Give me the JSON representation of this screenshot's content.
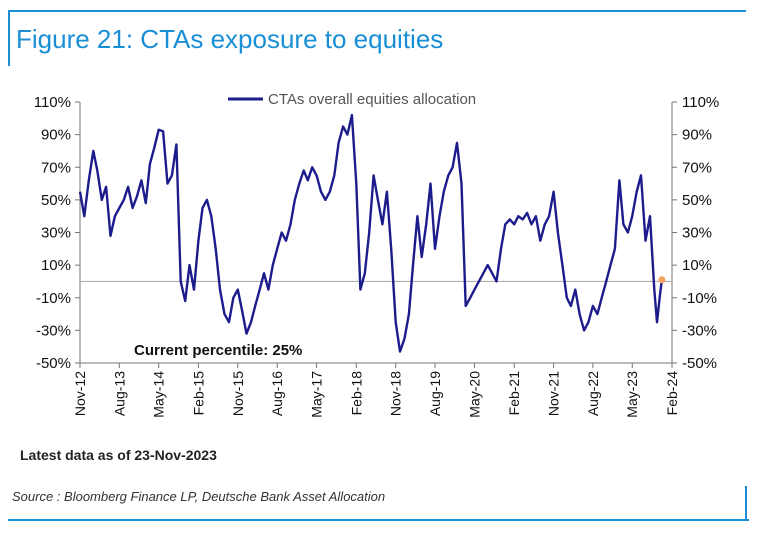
{
  "figure_title": "Figure 21: CTAs exposure to equities",
  "latest_note": "Latest data as of 23-Nov-2023",
  "source": "Source : Bloomberg Finance LP, Deutsche Bank Asset Allocation",
  "colors": {
    "accent": "#1a8fd6",
    "series": "#1c1c8c",
    "marker": "#f4a460",
    "zero_line": "#b0b0b0"
  },
  "chart_data": {
    "type": "line",
    "title": "",
    "xlabel": "",
    "ylabel": "",
    "ylim": [
      -50,
      110
    ],
    "yticks": [
      110,
      90,
      70,
      50,
      30,
      10,
      -10,
      -30,
      -50
    ],
    "ytick_labels": [
      "110%",
      "90%",
      "70%",
      "50%",
      "30%",
      "10%",
      "-10%",
      "-30%",
      "-50%"
    ],
    "xlim": [
      "2012-11-01",
      "2024-02-01"
    ],
    "xtick_labels": [
      "Nov-12",
      "Aug-13",
      "May-14",
      "Feb-15",
      "Nov-15",
      "Aug-16",
      "May-17",
      "Feb-18",
      "Nov-18",
      "Aug-19",
      "May-20",
      "Feb-21",
      "Nov-21",
      "Aug-22",
      "May-23",
      "Feb-24"
    ],
    "xtick_dates": [
      "2012-11-01",
      "2013-08-01",
      "2014-05-01",
      "2015-02-01",
      "2015-11-01",
      "2016-08-01",
      "2017-05-01",
      "2018-02-01",
      "2018-11-01",
      "2019-08-01",
      "2020-05-01",
      "2021-02-01",
      "2021-11-01",
      "2022-08-01",
      "2023-05-01",
      "2024-02-01"
    ],
    "legend": "top-center",
    "annotation": "Current percentile: 25%",
    "highlight_point": {
      "x": "2023-11-23",
      "y": 1
    },
    "series": [
      {
        "name": "CTAs overall equities allocation",
        "points": [
          [
            "2012-11-01",
            55
          ],
          [
            "2012-12-01",
            40
          ],
          [
            "2013-01-01",
            62
          ],
          [
            "2013-02-01",
            80
          ],
          [
            "2013-03-01",
            68
          ],
          [
            "2013-04-01",
            50
          ],
          [
            "2013-05-01",
            58
          ],
          [
            "2013-06-01",
            28
          ],
          [
            "2013-07-01",
            40
          ],
          [
            "2013-08-01",
            45
          ],
          [
            "2013-09-01",
            50
          ],
          [
            "2013-10-01",
            58
          ],
          [
            "2013-11-01",
            45
          ],
          [
            "2013-12-01",
            52
          ],
          [
            "2014-01-01",
            62
          ],
          [
            "2014-02-01",
            48
          ],
          [
            "2014-03-01",
            72
          ],
          [
            "2014-04-01",
            82
          ],
          [
            "2014-05-01",
            93
          ],
          [
            "2014-06-01",
            92
          ],
          [
            "2014-07-01",
            60
          ],
          [
            "2014-08-01",
            65
          ],
          [
            "2014-09-01",
            84
          ],
          [
            "2014-10-01",
            0
          ],
          [
            "2014-11-01",
            -12
          ],
          [
            "2014-12-01",
            10
          ],
          [
            "2015-01-01",
            -5
          ],
          [
            "2015-02-01",
            25
          ],
          [
            "2015-03-01",
            45
          ],
          [
            "2015-04-01",
            50
          ],
          [
            "2015-05-01",
            40
          ],
          [
            "2015-06-01",
            20
          ],
          [
            "2015-07-01",
            -5
          ],
          [
            "2015-08-01",
            -20
          ],
          [
            "2015-09-01",
            -25
          ],
          [
            "2015-10-01",
            -10
          ],
          [
            "2015-11-01",
            -5
          ],
          [
            "2015-12-01",
            -18
          ],
          [
            "2016-01-01",
            -32
          ],
          [
            "2016-02-01",
            -25
          ],
          [
            "2016-03-01",
            -15
          ],
          [
            "2016-04-01",
            -5
          ],
          [
            "2016-05-01",
            5
          ],
          [
            "2016-06-01",
            -5
          ],
          [
            "2016-07-01",
            10
          ],
          [
            "2016-08-01",
            20
          ],
          [
            "2016-09-01",
            30
          ],
          [
            "2016-10-01",
            25
          ],
          [
            "2016-11-01",
            35
          ],
          [
            "2016-12-01",
            50
          ],
          [
            "2017-01-01",
            60
          ],
          [
            "2017-02-01",
            68
          ],
          [
            "2017-03-01",
            62
          ],
          [
            "2017-04-01",
            70
          ],
          [
            "2017-05-01",
            65
          ],
          [
            "2017-06-01",
            55
          ],
          [
            "2017-07-01",
            50
          ],
          [
            "2017-08-01",
            55
          ],
          [
            "2017-09-01",
            65
          ],
          [
            "2017-10-01",
            85
          ],
          [
            "2017-11-01",
            95
          ],
          [
            "2017-12-01",
            90
          ],
          [
            "2018-01-01",
            102
          ],
          [
            "2018-02-01",
            60
          ],
          [
            "2018-03-01",
            -5
          ],
          [
            "2018-04-01",
            5
          ],
          [
            "2018-05-01",
            30
          ],
          [
            "2018-06-01",
            65
          ],
          [
            "2018-07-01",
            50
          ],
          [
            "2018-08-01",
            35
          ],
          [
            "2018-09-01",
            55
          ],
          [
            "2018-10-01",
            20
          ],
          [
            "2018-11-01",
            -25
          ],
          [
            "2018-12-01",
            -43
          ],
          [
            "2019-01-01",
            -35
          ],
          [
            "2019-02-01",
            -20
          ],
          [
            "2019-03-01",
            10
          ],
          [
            "2019-04-01",
            40
          ],
          [
            "2019-05-01",
            15
          ],
          [
            "2019-06-01",
            35
          ],
          [
            "2019-07-01",
            60
          ],
          [
            "2019-08-01",
            20
          ],
          [
            "2019-09-01",
            40
          ],
          [
            "2019-10-01",
            55
          ],
          [
            "2019-11-01",
            65
          ],
          [
            "2019-12-01",
            70
          ],
          [
            "2020-01-01",
            85
          ],
          [
            "2020-02-01",
            60
          ],
          [
            "2020-03-01",
            -15
          ],
          [
            "2020-04-01",
            -10
          ],
          [
            "2020-05-01",
            -5
          ],
          [
            "2020-06-01",
            0
          ],
          [
            "2020-07-01",
            5
          ],
          [
            "2020-08-01",
            10
          ],
          [
            "2020-09-01",
            5
          ],
          [
            "2020-10-01",
            0
          ],
          [
            "2020-11-01",
            20
          ],
          [
            "2020-12-01",
            35
          ],
          [
            "2021-01-01",
            38
          ],
          [
            "2021-02-01",
            35
          ],
          [
            "2021-03-01",
            40
          ],
          [
            "2021-04-01",
            38
          ],
          [
            "2021-05-01",
            42
          ],
          [
            "2021-06-01",
            35
          ],
          [
            "2021-07-01",
            40
          ],
          [
            "2021-08-01",
            25
          ],
          [
            "2021-09-01",
            35
          ],
          [
            "2021-10-01",
            40
          ],
          [
            "2021-11-01",
            55
          ],
          [
            "2021-12-01",
            30
          ],
          [
            "2022-01-01",
            10
          ],
          [
            "2022-02-01",
            -10
          ],
          [
            "2022-03-01",
            -15
          ],
          [
            "2022-04-01",
            -5
          ],
          [
            "2022-05-01",
            -20
          ],
          [
            "2022-06-01",
            -30
          ],
          [
            "2022-07-01",
            -25
          ],
          [
            "2022-08-01",
            -15
          ],
          [
            "2022-09-01",
            -20
          ],
          [
            "2022-10-01",
            -10
          ],
          [
            "2022-11-01",
            0
          ],
          [
            "2022-12-01",
            10
          ],
          [
            "2023-01-01",
            20
          ],
          [
            "2023-02-01",
            62
          ],
          [
            "2023-03-01",
            35
          ],
          [
            "2023-04-01",
            30
          ],
          [
            "2023-05-01",
            40
          ],
          [
            "2023-06-01",
            55
          ],
          [
            "2023-07-01",
            65
          ],
          [
            "2023-08-01",
            25
          ],
          [
            "2023-09-01",
            40
          ],
          [
            "2023-10-01",
            -5
          ],
          [
            "2023-10-20",
            -25
          ],
          [
            "2023-11-10",
            -8
          ],
          [
            "2023-11-23",
            1
          ]
        ]
      }
    ]
  }
}
